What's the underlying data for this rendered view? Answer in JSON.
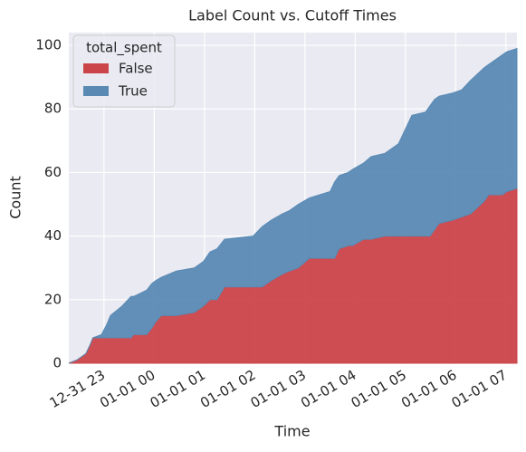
{
  "chart_data": {
    "type": "stacked_area",
    "title": "Label Count vs. Cutoff Times",
    "xlabel": "Time",
    "ylabel": "Count",
    "x": [
      -0.7,
      -0.54,
      -0.36,
      -0.27,
      -0.22,
      -0.05,
      0.05,
      0.13,
      0.36,
      0.54,
      0.59,
      0.85,
      0.95,
      1.03,
      1.14,
      1.44,
      1.8,
      1.98,
      2.11,
      2.25,
      2.4,
      2.97,
      3.15,
      3.33,
      3.55,
      3.69,
      3.87,
      4.09,
      4.5,
      4.59,
      4.68,
      4.86,
      4.95,
      5.17,
      5.32,
      5.59,
      5.86,
      5.95,
      6.13,
      6.4,
      6.49,
      6.58,
      6.67,
      6.94,
      7.12,
      7.3,
      7.57,
      7.66,
      7.93,
      8.02,
      8.22
    ],
    "series": [
      {
        "name": "False",
        "color": "#cb444a",
        "values": [
          0,
          1,
          3,
          6,
          8,
          8,
          8,
          8,
          8,
          8,
          9,
          9,
          11,
          13,
          15,
          15,
          16,
          18,
          20,
          20,
          24,
          24,
          24,
          26,
          28,
          29,
          30,
          33,
          33,
          33,
          36,
          37,
          37,
          39,
          39,
          40,
          40,
          40,
          40,
          40,
          40,
          42,
          44,
          45,
          46,
          47,
          51,
          53,
          53,
          54,
          55
        ]
      },
      {
        "name": "True",
        "color": "#5a8ab4",
        "values": [
          0,
          0,
          0,
          0,
          0,
          1,
          4,
          7,
          10,
          13,
          12,
          14,
          14,
          13,
          12,
          14,
          14,
          14,
          15,
          16,
          15,
          16,
          19,
          19,
          19,
          19,
          20,
          19,
          21,
          24,
          23,
          23,
          24,
          24,
          26,
          26,
          29,
          32,
          38,
          39,
          41,
          41,
          40,
          40,
          40,
          42,
          42,
          41,
          44,
          44,
          44
        ]
      }
    ],
    "legend_title": "total_spent",
    "legend": "upper left",
    "xlim": [
      -0.7,
      8.22
    ],
    "xticks": [
      {
        "value": 0,
        "label": "12-31 23"
      },
      {
        "value": 1,
        "label": "01-01 00"
      },
      {
        "value": 2,
        "label": "01-01 01"
      },
      {
        "value": 3,
        "label": "01-01 02"
      },
      {
        "value": 4,
        "label": "01-01 03"
      },
      {
        "value": 5,
        "label": "01-01 04"
      },
      {
        "value": 6,
        "label": "01-01 05"
      },
      {
        "value": 7,
        "label": "01-01 06"
      },
      {
        "value": 8,
        "label": "01-01 07"
      }
    ],
    "ylim": [
      0,
      104
    ],
    "yticks": [
      0,
      20,
      40,
      60,
      80,
      100
    ],
    "grid": true
  }
}
